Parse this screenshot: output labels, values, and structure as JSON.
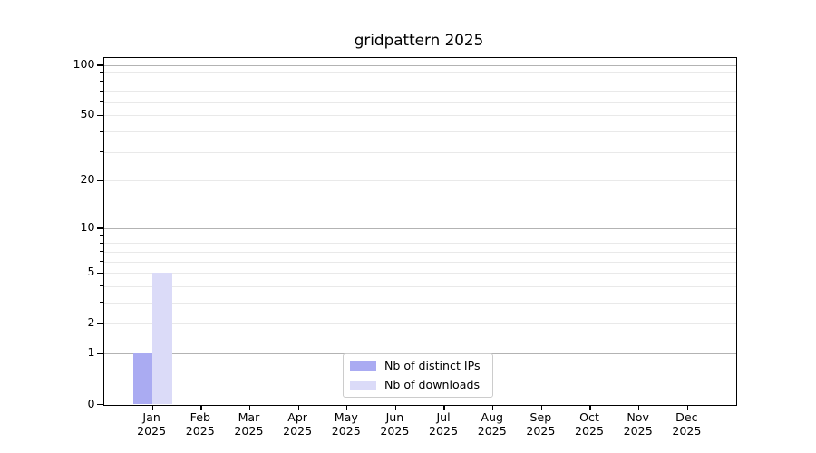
{
  "title": "gridpattern 2025",
  "chart_data": {
    "type": "bar",
    "title": "gridpattern 2025",
    "x_months": [
      "Jan",
      "Feb",
      "Mar",
      "Apr",
      "May",
      "Jun",
      "Jul",
      "Aug",
      "Sep",
      "Oct",
      "Nov",
      "Dec"
    ],
    "x_year": "2025",
    "series": [
      {
        "name": "Nb of distinct IPs",
        "color": "#aaabf2",
        "values": [
          1,
          0,
          0,
          0,
          0,
          0,
          0,
          0,
          0,
          0,
          0,
          0
        ]
      },
      {
        "name": "Nb of downloads",
        "color": "#dbdbf8",
        "values": [
          5,
          0,
          0,
          0,
          0,
          0,
          0,
          0,
          0,
          0,
          0,
          0
        ]
      }
    ],
    "yscale": "log1p",
    "ylim": [
      0,
      111
    ],
    "y_tick_labels": [
      0,
      1,
      2,
      5,
      10,
      20,
      50,
      100
    ],
    "major_gridlines": [
      1,
      10,
      100
    ],
    "minor_gridlines": [
      2,
      3,
      4,
      5,
      6,
      7,
      8,
      9,
      20,
      30,
      40,
      50,
      60,
      70,
      80,
      90
    ],
    "grid": true,
    "legend": {
      "position": "lower center",
      "items": [
        "Nb of distinct IPs",
        "Nb of downloads"
      ]
    },
    "colors": {
      "axis": "#000000",
      "major_grid": "#b3b3b3",
      "minor_grid": "#e9e9e9",
      "text": "#000000",
      "legend_border": "#cccccc",
      "background": "#ffffff"
    }
  }
}
